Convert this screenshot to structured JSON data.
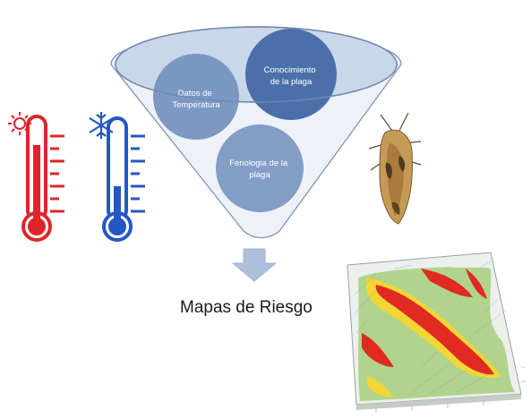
{
  "diagram": {
    "circles": [
      {
        "id": "temperature",
        "lines": [
          "Datos de",
          "Temperatura"
        ]
      },
      {
        "id": "pest-knowledge",
        "lines": [
          "Conocimiento",
          "de la plaga"
        ]
      },
      {
        "id": "phenology",
        "lines": [
          "Fenologia de la",
          "plaga"
        ]
      }
    ],
    "output_label": "Mapas de Riesgo",
    "icons": [
      "hot-thermometer-icon",
      "cold-thermometer-icon",
      "sun-icon",
      "snowflake-icon",
      "moth-image",
      "down-arrow-icon",
      "risk-map-3d"
    ],
    "colors": {
      "funnel_fill": "#e9eef5",
      "funnel_rim": "#c5d3e5",
      "funnel_stroke": "#6f8ab0",
      "circle_light": "#7b97c2",
      "circle_dark": "#4a6fa8",
      "hot_red": "#e0242b",
      "cold_blue": "#2457c5",
      "arrow": "#aebfd9"
    }
  }
}
